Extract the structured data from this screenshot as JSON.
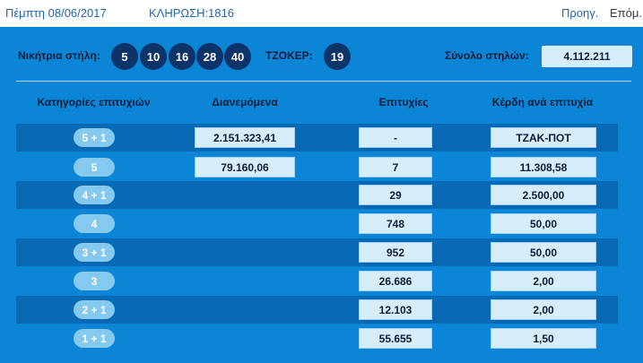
{
  "header": {
    "date": "Πέμπτη 08/06/2017",
    "draw_label": "ΚΛΗΡΩΣΗ:",
    "draw_number": "1816",
    "prev_label": "Προηγ.",
    "next_label": "Επόμ."
  },
  "winning": {
    "label": "Νικήτρια στήλη:",
    "numbers": [
      "5",
      "10",
      "16",
      "28",
      "40"
    ],
    "joker_label": "ΤΖΟΚΕΡ:",
    "joker": "19",
    "total_label": "Σύνολο στηλών:",
    "total_value": "4.112.211"
  },
  "table": {
    "headers": [
      "Κατηγορίες επιτυχιών",
      "Διανεμόμενα",
      "Επιτυχίες",
      "Κέρδη ανά επιτυχία"
    ],
    "rows": [
      {
        "category": "5 + 1",
        "distributed": "2.151.323,41",
        "winners": "-",
        "prize": "ΤΖΑΚ-ΠΟΤ"
      },
      {
        "category": "5",
        "distributed": "79.160,06",
        "winners": "7",
        "prize": "11.308,58"
      },
      {
        "category": "4 + 1",
        "distributed": "",
        "winners": "29",
        "prize": "2.500,00"
      },
      {
        "category": "4",
        "distributed": "",
        "winners": "748",
        "prize": "50,00"
      },
      {
        "category": "3 + 1",
        "distributed": "",
        "winners": "952",
        "prize": "50,00"
      },
      {
        "category": "3",
        "distributed": "",
        "winners": "26.686",
        "prize": "2,00"
      },
      {
        "category": "2 + 1",
        "distributed": "",
        "winners": "12.103",
        "prize": "2,00"
      },
      {
        "category": "1 + 1",
        "distributed": "",
        "winners": "55.655",
        "prize": "1,50"
      }
    ]
  },
  "colors": {
    "panel_bg": "#0b86d6",
    "row_dark": "#0a69b4",
    "ball_bg": "#0d3468",
    "pill_bg": "#86c9ef",
    "cell_bg": "#d6eef9",
    "link": "#1f66b0"
  }
}
